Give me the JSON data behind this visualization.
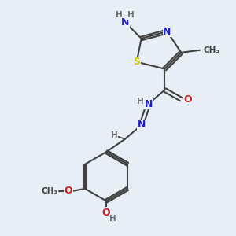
{
  "background_color": "#e8eef5",
  "atom_colors": {
    "C": "#404040",
    "H": "#707070",
    "N": "#2020cc",
    "O": "#cc2020",
    "S": "#cccc00"
  },
  "font_size_atoms": 9,
  "font_size_small": 7.5
}
